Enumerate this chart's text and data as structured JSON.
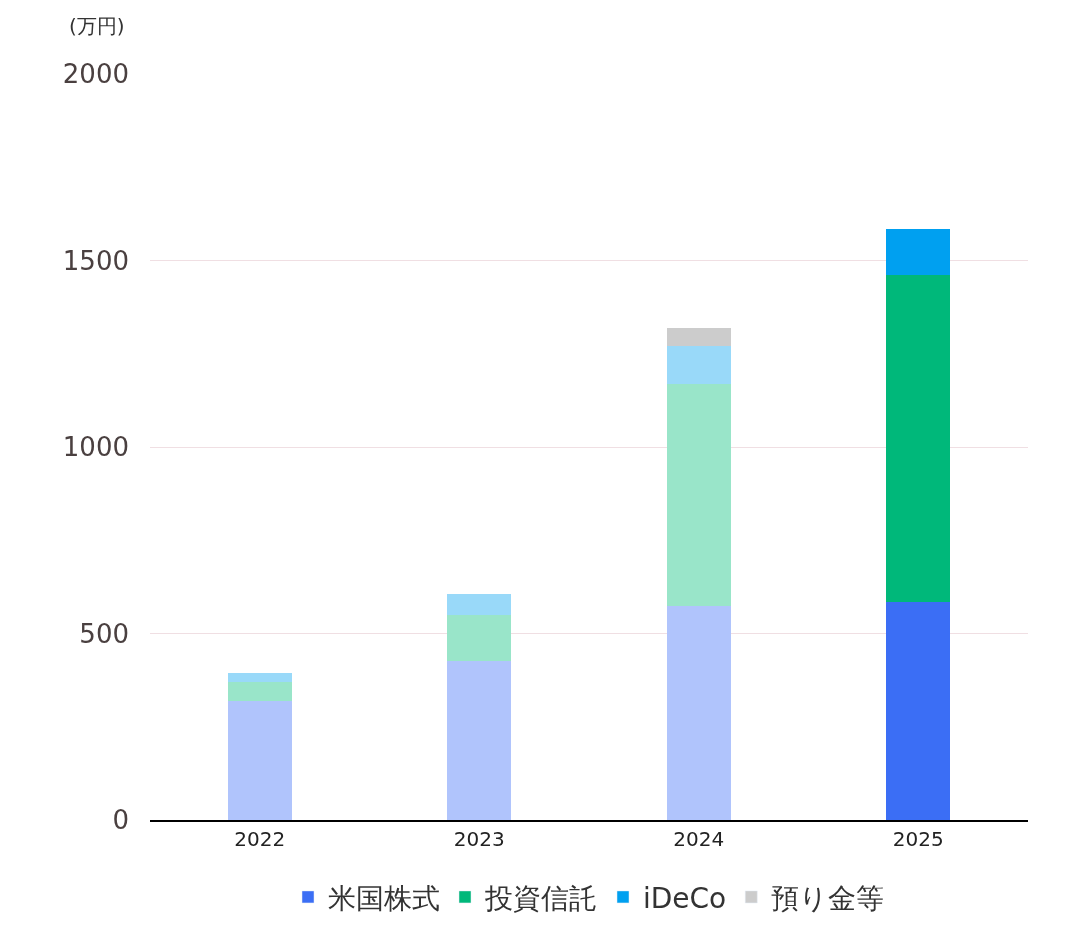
{
  "chart_data": {
    "type": "bar",
    "stacked": true,
    "ylabel": "(万円)",
    "categories": [
      "2022",
      "2023",
      "2024",
      "2025"
    ],
    "series": [
      {
        "name": "米国株式",
        "color": "#3b6ef5",
        "colors": [
          "#b0c4fc",
          "#b0c4fc",
          "#b0c4fc",
          "#3b6ef5"
        ],
        "values": [
          320,
          425,
          575,
          585
        ]
      },
      {
        "name": "投資信託",
        "color": "#00b87a",
        "colors": [
          "#99e5c9",
          "#99e5c9",
          "#99e5c9",
          "#00b87a"
        ],
        "values": [
          50,
          125,
          595,
          875
        ]
      },
      {
        "name": "iDeCo",
        "color": "#00a0f0",
        "colors": [
          "#99d9f9",
          "#99d9f9",
          "#99d9f9",
          "#00a0f0"
        ],
        "values": [
          25,
          55,
          100,
          125
        ]
      },
      {
        "name": "預り金等",
        "color": "#cccccc",
        "colors": [
          "#cccccc",
          "#cccccc",
          "#cccccc",
          "#888888"
        ],
        "values": [
          null,
          null,
          50,
          null
        ]
      }
    ],
    "ylim": [
      0,
      2000
    ],
    "yticks": [
      0,
      500,
      1000,
      1500,
      2000
    ],
    "grid": "y",
    "legend": "bottom"
  }
}
